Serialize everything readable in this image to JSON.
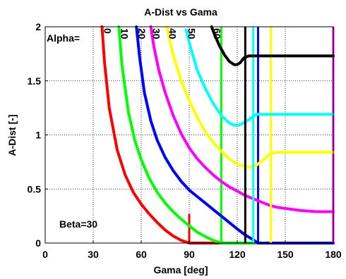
{
  "chart_data": {
    "type": "line",
    "title": "A-Dist vs Gama",
    "xlabel": "Gama [deg]",
    "ylabel": "A-Dist [-]",
    "xlim": [
      0,
      180
    ],
    "ylim": [
      0,
      2
    ],
    "xticks": [
      0,
      30,
      60,
      90,
      120,
      150,
      180
    ],
    "yticks": [
      0,
      0.5,
      1,
      1.5,
      2
    ],
    "xtick_labels": [
      "0",
      "30",
      "60",
      "90",
      "120",
      "150",
      "180"
    ],
    "ytick_labels": [
      "0",
      "0.5",
      "1",
      "1.5",
      "2"
    ],
    "grid": true,
    "legend": "none",
    "annotations": {
      "alpha_prefix": "Alpha=",
      "beta": "Beta=30"
    },
    "series": [
      {
        "alpha_label": "0",
        "color": "#ff0000",
        "points": [
          [
            35.5,
            2.0
          ],
          [
            37,
            1.68
          ],
          [
            40,
            1.25
          ],
          [
            45,
            0.86
          ],
          [
            50,
            0.63
          ],
          [
            55,
            0.47
          ],
          [
            60,
            0.36
          ],
          [
            65,
            0.27
          ],
          [
            70,
            0.19
          ],
          [
            75,
            0.12
          ],
          [
            80,
            0.065
          ],
          [
            85,
            0.025
          ],
          [
            90,
            0.0
          ],
          [
            180,
            0.0
          ]
        ],
        "vertical_at": 90,
        "vertical_range": [
          0,
          0.27
        ]
      },
      {
        "alpha_label": "10",
        "color": "#00ff00",
        "points": [
          [
            46,
            2.0
          ],
          [
            48,
            1.64
          ],
          [
            52,
            1.21
          ],
          [
            56,
            0.95
          ],
          [
            60,
            0.77
          ],
          [
            65,
            0.6
          ],
          [
            70,
            0.47
          ],
          [
            75,
            0.37
          ],
          [
            80,
            0.29
          ],
          [
            85,
            0.22
          ],
          [
            90,
            0.16
          ],
          [
            95,
            0.1
          ],
          [
            100,
            0.06
          ],
          [
            105,
            0.025
          ],
          [
            110,
            0.0
          ],
          [
            180,
            0.0
          ]
        ],
        "vertical_at": 110,
        "vertical_range": [
          0,
          2.0
        ]
      },
      {
        "alpha_label": "20",
        "color": "#0000ff",
        "points": [
          [
            57,
            2.0
          ],
          [
            59,
            1.72
          ],
          [
            62,
            1.39
          ],
          [
            66,
            1.13
          ],
          [
            70,
            0.95
          ],
          [
            75,
            0.79
          ],
          [
            80,
            0.67
          ],
          [
            85,
            0.57
          ],
          [
            90,
            0.49
          ],
          [
            95,
            0.43
          ],
          [
            100,
            0.37
          ],
          [
            105,
            0.31
          ],
          [
            110,
            0.25
          ],
          [
            115,
            0.19
          ],
          [
            120,
            0.13
          ],
          [
            125,
            0.075
          ],
          [
            130,
            0.03
          ],
          [
            133,
            0.0
          ],
          [
            180,
            0.0
          ]
        ],
        "vertical_at": 133,
        "vertical_range": [
          0,
          2.0
        ]
      },
      {
        "alpha_label": "30",
        "color": "#ff00ff",
        "points": [
          [
            66,
            2.0
          ],
          [
            68,
            1.81
          ],
          [
            71,
            1.6
          ],
          [
            75,
            1.39
          ],
          [
            80,
            1.18
          ],
          [
            85,
            1.01
          ],
          [
            90,
            0.88
          ],
          [
            95,
            0.78
          ],
          [
            100,
            0.7
          ],
          [
            105,
            0.63
          ],
          [
            110,
            0.57
          ],
          [
            115,
            0.52
          ],
          [
            120,
            0.48
          ],
          [
            125,
            0.44
          ],
          [
            130,
            0.41
          ],
          [
            135,
            0.38
          ],
          [
            140,
            0.35
          ],
          [
            145,
            0.33
          ],
          [
            150,
            0.32
          ],
          [
            155,
            0.31
          ],
          [
            160,
            0.3
          ],
          [
            170,
            0.29
          ],
          [
            180,
            0.29
          ]
        ],
        "vertical_at": 180,
        "vertical_range": [
          0,
          2.0
        ]
      },
      {
        "alpha_label": "40",
        "color": "#ffff00",
        "points": [
          [
            76,
            2.0
          ],
          [
            78,
            1.86
          ],
          [
            81,
            1.69
          ],
          [
            85,
            1.5
          ],
          [
            90,
            1.32
          ],
          [
            95,
            1.16
          ],
          [
            100,
            1.03
          ],
          [
            105,
            0.93
          ],
          [
            110,
            0.85
          ],
          [
            115,
            0.78
          ],
          [
            120,
            0.73
          ],
          [
            125,
            0.71
          ],
          [
            128,
            0.7
          ],
          [
            132,
            0.72
          ],
          [
            137,
            0.78
          ],
          [
            141,
            0.83
          ],
          [
            145,
            0.84
          ],
          [
            180,
            0.84
          ]
        ],
        "vertical_at": 141,
        "vertical_range": [
          0,
          2.0
        ]
      },
      {
        "alpha_label": "50",
        "color": "#00ffff",
        "points": [
          [
            88,
            1.97
          ],
          [
            91,
            1.8
          ],
          [
            95,
            1.6
          ],
          [
            100,
            1.43
          ],
          [
            105,
            1.29
          ],
          [
            110,
            1.18
          ],
          [
            115,
            1.11
          ],
          [
            118,
            1.09
          ],
          [
            121,
            1.09
          ],
          [
            124,
            1.11
          ],
          [
            128,
            1.15
          ],
          [
            132,
            1.19
          ],
          [
            135,
            1.19
          ],
          [
            180,
            1.19
          ]
        ],
        "vertical_at": 130,
        "vertical_range": [
          0,
          2.0
        ]
      },
      {
        "alpha_label": "60",
        "color": "#000000",
        "points": [
          [
            104,
            2.0
          ],
          [
            106,
            1.92
          ],
          [
            109,
            1.82
          ],
          [
            112,
            1.74
          ],
          [
            115,
            1.68
          ],
          [
            118,
            1.65
          ],
          [
            120,
            1.65
          ],
          [
            122,
            1.67
          ],
          [
            124,
            1.71
          ],
          [
            127,
            1.73
          ],
          [
            180,
            1.73
          ]
        ],
        "vertical_at": 125,
        "vertical_range": [
          0,
          2.0
        ]
      }
    ]
  }
}
